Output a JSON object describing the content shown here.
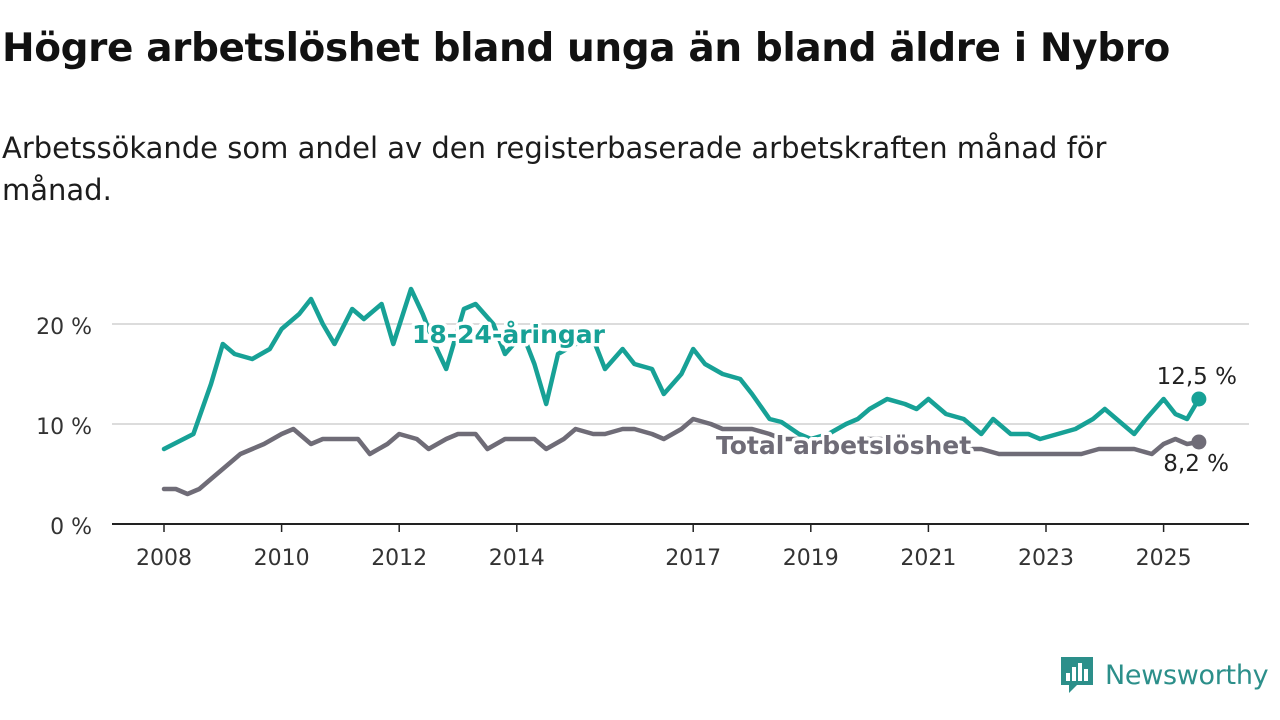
{
  "title": "Högre arbetslöshet bland unga än bland äldre i Nybro",
  "subtitle": "Arbetssökande som andel av den registerbaserade arbetskraften månad för månad.",
  "brand": "Newsworthy",
  "colors": {
    "young": "#17a196",
    "total": "#6f6c77",
    "grid": "#dcdcdc",
    "axis": "#222222",
    "brand": "#2c8f8a"
  },
  "chart_data": {
    "type": "line",
    "title": "Högre arbetslöshet bland unga än bland äldre i Nybro",
    "subtitle": "Arbetssökande som andel av den registerbaserade arbetskraften månad för månad.",
    "xlabel": "",
    "ylabel": "",
    "ylim": [
      0,
      22.5
    ],
    "xlim": [
      2007.5,
      2026.5
    ],
    "grid": true,
    "y_ticks": [
      0,
      10,
      20
    ],
    "y_tick_labels": [
      "0 %",
      "10 %",
      "20 %"
    ],
    "x_ticks": [
      2008,
      2010,
      2012,
      2014,
      2017,
      2019,
      2021,
      2023,
      2025
    ],
    "x_tick_labels": [
      "2008",
      "2010",
      "2012",
      "2014",
      "2017",
      "2019",
      "2021",
      "2023",
      "2025"
    ],
    "series": [
      {
        "name": "18-24-åringar",
        "color": "#17a196",
        "end_label": "12,5 %",
        "x": [
          2008.0,
          2008.5,
          2008.8,
          2009.0,
          2009.2,
          2009.5,
          2009.8,
          2010.0,
          2010.3,
          2010.5,
          2010.7,
          2010.9,
          2011.2,
          2011.4,
          2011.7,
          2011.9,
          2012.2,
          2012.4,
          2012.6,
          2012.8,
          2013.1,
          2013.3,
          2013.6,
          2013.8,
          2014.1,
          2014.3,
          2014.5,
          2014.7,
          2015.0,
          2015.3,
          2015.5,
          2015.8,
          2016.0,
          2016.3,
          2016.5,
          2016.8,
          2017.0,
          2017.2,
          2017.5,
          2017.8,
          2018.0,
          2018.3,
          2018.5,
          2018.8,
          2019.0,
          2019.3,
          2019.6,
          2019.8,
          2020.0,
          2020.3,
          2020.6,
          2020.8,
          2021.0,
          2021.3,
          2021.6,
          2021.9,
          2022.1,
          2022.4,
          2022.7,
          2022.9,
          2023.2,
          2023.5,
          2023.8,
          2024.0,
          2024.3,
          2024.5,
          2024.7,
          2025.0,
          2025.2,
          2025.4,
          2025.6
        ],
        "y": [
          7.5,
          9.0,
          14.0,
          18.0,
          17.0,
          16.5,
          17.5,
          19.5,
          21.0,
          22.5,
          20.0,
          18.0,
          21.5,
          20.5,
          22.0,
          18.0,
          23.5,
          21.0,
          18.0,
          15.5,
          21.5,
          22.0,
          20.0,
          17.0,
          19.0,
          16.0,
          12.0,
          17.0,
          18.0,
          18.5,
          15.5,
          17.5,
          16.0,
          15.5,
          13.0,
          15.0,
          17.5,
          16.0,
          15.0,
          14.5,
          13.0,
          10.5,
          10.2,
          9.0,
          8.5,
          9.0,
          10.0,
          10.5,
          11.5,
          12.5,
          12.0,
          11.5,
          12.5,
          11.0,
          10.5,
          9.0,
          10.5,
          9.0,
          9.0,
          8.5,
          9.0,
          9.5,
          10.5,
          11.5,
          10.0,
          9.0,
          10.5,
          12.5,
          11.0,
          10.5,
          12.5
        ]
      },
      {
        "name": "Total arbetslöshet",
        "color": "#6f6c77",
        "end_label": "8,2 %",
        "x": [
          2008.0,
          2008.2,
          2008.4,
          2008.6,
          2008.8,
          2009.0,
          2009.3,
          2009.5,
          2009.7,
          2010.0,
          2010.2,
          2010.5,
          2010.7,
          2011.0,
          2011.3,
          2011.5,
          2011.8,
          2012.0,
          2012.3,
          2012.5,
          2012.8,
          2013.0,
          2013.3,
          2013.5,
          2013.8,
          2014.0,
          2014.3,
          2014.5,
          2014.8,
          2015.0,
          2015.3,
          2015.5,
          2015.8,
          2016.0,
          2016.3,
          2016.5,
          2016.8,
          2017.0,
          2017.3,
          2017.5,
          2017.8,
          2018.0,
          2018.3,
          2018.5,
          2018.8,
          2019.0,
          2019.3,
          2019.6,
          2019.9,
          2020.2,
          2020.5,
          2020.8,
          2021.0,
          2021.3,
          2021.6,
          2021.9,
          2022.2,
          2022.5,
          2022.8,
          2023.0,
          2023.3,
          2023.6,
          2023.9,
          2024.2,
          2024.5,
          2024.8,
          2025.0,
          2025.2,
          2025.4,
          2025.6
        ],
        "y": [
          3.5,
          3.5,
          3.0,
          3.5,
          4.5,
          5.5,
          7.0,
          7.5,
          8.0,
          9.0,
          9.5,
          8.0,
          8.5,
          8.5,
          8.5,
          7.0,
          8.0,
          9.0,
          8.5,
          7.5,
          8.5,
          9.0,
          9.0,
          7.5,
          8.5,
          8.5,
          8.5,
          7.5,
          8.5,
          9.5,
          9.0,
          9.0,
          9.5,
          9.5,
          9.0,
          8.5,
          9.5,
          10.5,
          10.0,
          9.5,
          9.5,
          9.5,
          9.0,
          8.5,
          8.5,
          8.5,
          8.0,
          8.0,
          8.5,
          8.5,
          8.0,
          7.5,
          8.0,
          8.0,
          7.5,
          7.5,
          7.0,
          7.0,
          7.0,
          7.0,
          7.0,
          7.0,
          7.5,
          7.5,
          7.5,
          7.0,
          8.0,
          8.5,
          8.0,
          8.2
        ]
      }
    ]
  }
}
